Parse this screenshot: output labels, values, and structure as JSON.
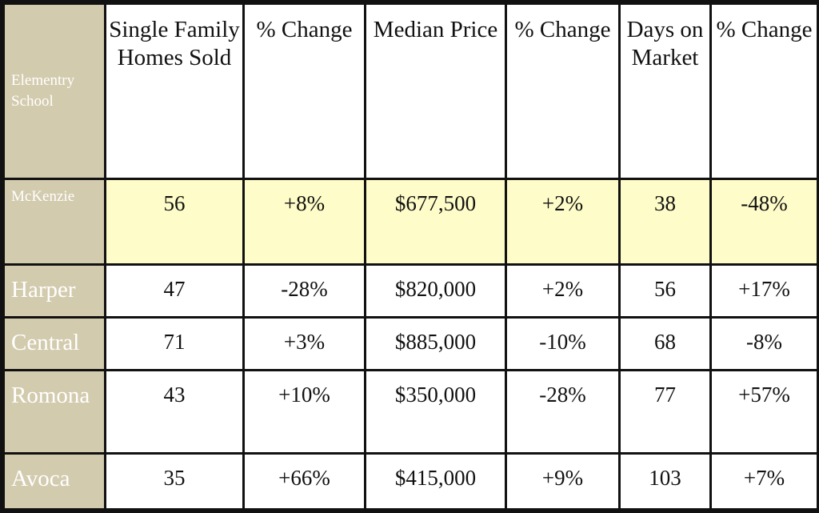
{
  "headers": [
    "Elementry School",
    "Single Family Homes Sold",
    "% Change",
    "Median Price",
    "% Change",
    "Days on Market",
    "% Change"
  ],
  "rows": [
    {
      "school": "McKenzie",
      "sold": "56",
      "sold_change": "+8%",
      "price": "$677,500",
      "price_change": "+2%",
      "days": "38",
      "days_change": "-48%"
    },
    {
      "school": "Harper",
      "sold": "47",
      "sold_change": "-28%",
      "price": "$820,000",
      "price_change": "+2%",
      "days": "56",
      "days_change": "+17%"
    },
    {
      "school": "Central",
      "sold": "71",
      "sold_change": "+3%",
      "price": "$885,000",
      "price_change": "-10%",
      "days": "68",
      "days_change": "-8%"
    },
    {
      "school": "Romona",
      "sold": "43",
      "sold_change": "+10%",
      "price": "$350,000",
      "price_change": "-28%",
      "days": "77",
      "days_change": "+57%"
    },
    {
      "school": "Avoca",
      "sold": "35",
      "sold_change": "+66%",
      "price": "$415,000",
      "price_change": "+9%",
      "days": "103",
      "days_change": "+7%"
    }
  ],
  "colors": {
    "school_column": "#d3cbae",
    "highlight_row": "#fefcc8",
    "border": "#111111"
  }
}
